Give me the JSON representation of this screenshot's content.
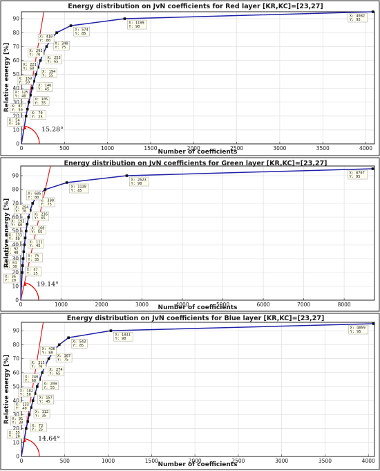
{
  "chart_data": [
    {
      "type": "line",
      "title": "Energy distribution on JvN coefficients for Red layer [KR,KC]=[23,27]",
      "xlabel": "Number of coefficients",
      "ylabel": "Relative energy [%]",
      "xlim": [
        0,
        4100
      ],
      "ylim": [
        0,
        95
      ],
      "xticks": [
        0,
        500,
        1000,
        1500,
        2000,
        2500,
        3000,
        3500,
        4000
      ],
      "yticks": [
        0,
        10,
        20,
        30,
        40,
        50,
        60,
        70,
        80,
        90
      ],
      "grid": true,
      "angle_label": "15.28°",
      "series": [
        {
          "x": [
            0,
            54,
            70,
            87,
            105,
            125,
            146,
            169,
            194,
            221,
            253,
            292,
            340,
            410,
            574,
            1199,
            4082
          ],
          "y": [
            0,
            20,
            25,
            30,
            35,
            40,
            45,
            50,
            55,
            60,
            65,
            70,
            75,
            80,
            85,
            90,
            95
          ]
        }
      ],
      "tangent_line": {
        "x": [
          0,
          274
        ],
        "y": [
          0,
          100
        ]
      },
      "datatips": [
        {
          "x": 54,
          "y": 20,
          "line1": "X: 54",
          "line2": "Y: 20"
        },
        {
          "x": 70,
          "y": 25,
          "line1": "X: 70",
          "line2": "Y: 25"
        },
        {
          "x": 87,
          "y": 30,
          "line1": "X: 87",
          "line2": "Y: 30"
        },
        {
          "x": 105,
          "y": 35,
          "line1": "X: 105",
          "line2": "Y: 35"
        },
        {
          "x": 125,
          "y": 40,
          "line1": "X: 125",
          "line2": "Y: 40"
        },
        {
          "x": 146,
          "y": 45,
          "line1": "X: 146",
          "line2": "Y: 45"
        },
        {
          "x": 169,
          "y": 50,
          "line1": "X: 169",
          "line2": "Y: 50"
        },
        {
          "x": 194,
          "y": 55,
          "line1": "X: 194",
          "line2": "Y: 55"
        },
        {
          "x": 221,
          "y": 60,
          "line1": "X: 221",
          "line2": "Y: 60"
        },
        {
          "x": 253,
          "y": 65,
          "line1": "X: 253",
          "line2": "Y: 65"
        },
        {
          "x": 292,
          "y": 70,
          "line1": "X: 292",
          "line2": "Y: 70"
        },
        {
          "x": 340,
          "y": 75,
          "line1": "X: 340",
          "line2": "Y: 75"
        },
        {
          "x": 410,
          "y": 80,
          "line1": "X: 410",
          "line2": "Y: 80"
        },
        {
          "x": 574,
          "y": 85,
          "line1": "X: 574",
          "line2": "Y: 85"
        },
        {
          "x": 1199,
          "y": 90,
          "line1": "X: 1199",
          "line2": "Y: 90"
        },
        {
          "x": 4082,
          "y": 95,
          "line1": "X: 4082",
          "line2": "Y: 95"
        }
      ]
    },
    {
      "type": "line",
      "title": "Energy distribution on JvN coefficients for Green layer [KR,KC]=[23,27]",
      "xlabel": "Number of coefficients",
      "ylabel": "Relative energy [%]",
      "xlim": [
        0,
        8750
      ],
      "ylim": [
        0,
        97
      ],
      "xticks": [
        0,
        1000,
        2000,
        3000,
        4000,
        5000,
        6000,
        7000,
        8000
      ],
      "yticks": [
        0,
        10,
        20,
        30,
        40,
        50,
        60,
        70,
        80,
        90
      ],
      "grid": true,
      "angle_label": "19.14°",
      "series": [
        {
          "x": [
            0,
            36,
            47,
            61,
            75,
            92,
            111,
            133,
            160,
            193,
            236,
            294,
            390,
            605,
            1139,
            2623,
            8707
          ],
          "y": [
            0,
            20,
            25,
            30,
            35,
            40,
            45,
            50,
            55,
            60,
            65,
            70,
            75,
            80,
            85,
            90,
            95
          ]
        }
      ],
      "tangent_line": {
        "x": [
          0,
          760
        ],
        "y": [
          0,
          100
        ]
      },
      "datatips": [
        {
          "x": 36,
          "y": 20,
          "line1": "X: 36",
          "line2": "Y: 20"
        },
        {
          "x": 47,
          "y": 25,
          "line1": "X: 47",
          "line2": "Y: 25"
        },
        {
          "x": 61,
          "y": 30,
          "line1": "X: 61",
          "line2": "Y: 30"
        },
        {
          "x": 75,
          "y": 35,
          "line1": "X: 75",
          "line2": "Y: 35"
        },
        {
          "x": 92,
          "y": 40,
          "line1": "X: 92",
          "line2": "Y: 40"
        },
        {
          "x": 111,
          "y": 45,
          "line1": "X: 111",
          "line2": "Y: 45"
        },
        {
          "x": 133,
          "y": 50,
          "line1": "X: 133",
          "line2": "Y: 50"
        },
        {
          "x": 160,
          "y": 55,
          "line1": "X: 160",
          "line2": "Y: 55"
        },
        {
          "x": 193,
          "y": 60,
          "line1": "X: 193",
          "line2": "Y: 60"
        },
        {
          "x": 236,
          "y": 65,
          "line1": "X: 236",
          "line2": "Y: 65"
        },
        {
          "x": 294,
          "y": 70,
          "line1": "X: 294",
          "line2": "Y: 70"
        },
        {
          "x": 390,
          "y": 75,
          "line1": "X: 390",
          "line2": "Y: 75"
        },
        {
          "x": 605,
          "y": 80,
          "line1": "X: 605",
          "line2": "Y: 80"
        },
        {
          "x": 1139,
          "y": 85,
          "line1": "X: 1139",
          "line2": "Y: 85"
        },
        {
          "x": 2623,
          "y": 90,
          "line1": "X: 2623",
          "line2": "Y: 90"
        },
        {
          "x": 8707,
          "y": 95,
          "line1": "X: 8707",
          "line2": "Y: 95"
        }
      ]
    },
    {
      "type": "line",
      "title": "Energy distribution on JvN coefficients for Blue layer [KR,KC]=[23,27]",
      "xlabel": "Number of coefficients",
      "ylabel": "Relative energy [%]",
      "xlim": [
        0,
        4070
      ],
      "ylim": [
        0,
        96
      ],
      "xticks": [
        0,
        500,
        1000,
        1500,
        2000,
        2500,
        3000,
        3500,
        4000
      ],
      "yticks": [
        0,
        10,
        20,
        30,
        40,
        50,
        60,
        70,
        80,
        90
      ],
      "grid": true,
      "angle_label": "14.64°",
      "series": [
        {
          "x": [
            0,
            55,
            73,
            91,
            112,
            133,
            157,
            182,
            209,
            240,
            274,
            315,
            367,
            436,
            543,
            1031,
            4059
          ],
          "y": [
            0,
            20,
            25,
            30,
            35,
            40,
            45,
            50,
            55,
            60,
            65,
            70,
            75,
            80,
            85,
            90,
            95
          ]
        }
      ],
      "tangent_line": {
        "x": [
          0,
          262
        ],
        "y": [
          0,
          100
        ]
      },
      "datatips": [
        {
          "x": 55,
          "y": 20,
          "line1": "X: 55",
          "line2": "Y: 20"
        },
        {
          "x": 73,
          "y": 25,
          "line1": "X: 73",
          "line2": "Y: 25"
        },
        {
          "x": 91,
          "y": 30,
          "line1": "X: 91",
          "line2": "Y: 30"
        },
        {
          "x": 112,
          "y": 35,
          "line1": "X: 112",
          "line2": "Y: 35"
        },
        {
          "x": 133,
          "y": 40,
          "line1": "X: 133",
          "line2": "Y: 40"
        },
        {
          "x": 157,
          "y": 45,
          "line1": "X: 157",
          "line2": "Y: 45"
        },
        {
          "x": 182,
          "y": 50,
          "line1": "X: 182",
          "line2": "Y: 50"
        },
        {
          "x": 209,
          "y": 55,
          "line1": "X: 209",
          "line2": "Y: 55"
        },
        {
          "x": 240,
          "y": 60,
          "line1": "X: 240",
          "line2": "Y: 60"
        },
        {
          "x": 274,
          "y": 65,
          "line1": "X: 274",
          "line2": "Y: 65"
        },
        {
          "x": 315,
          "y": 70,
          "line1": "X: 315",
          "line2": "Y: 70"
        },
        {
          "x": 367,
          "y": 75,
          "line1": "X: 367",
          "line2": "Y: 75"
        },
        {
          "x": 436,
          "y": 80,
          "line1": "X: 436",
          "line2": "Y: 80"
        },
        {
          "x": 543,
          "y": 85,
          "line1": "X: 543",
          "line2": "Y: 85"
        },
        {
          "x": 1031,
          "y": 90,
          "line1": "X: 1031",
          "line2": "Y: 90"
        },
        {
          "x": 4059,
          "y": 95,
          "line1": "X: 4059",
          "line2": "Y: 95"
        }
      ]
    }
  ],
  "colors": {
    "curve": "#1f1fa8",
    "tangent": "#e02020",
    "angle_arc": "#e00000",
    "marker": "#111111",
    "grid": "#d9d9d9",
    "axes": "#222222",
    "datatip_fill": "#fffff0",
    "datatip_border": "#888888",
    "figure_border": "#222222"
  }
}
